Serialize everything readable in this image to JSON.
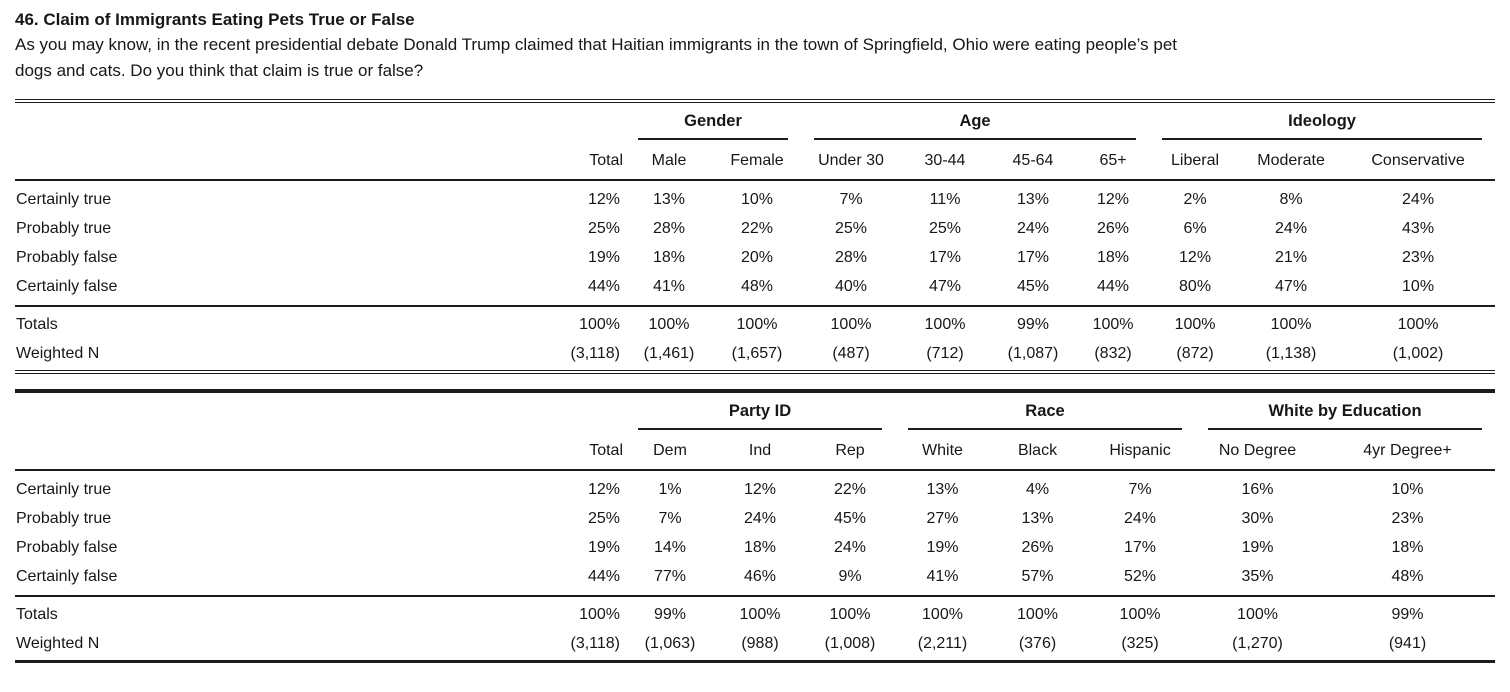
{
  "page": {
    "title": "46. Claim of Immigrants Eating Pets True or False",
    "question_line1": "As you may know, in the recent presidential debate Donald Trump claimed that Haitian immigrants in the town of Springfield, Ohio were eating people’s pet",
    "question_line2": "dogs and cats. Do you think that claim is true or false?"
  },
  "tables": [
    {
      "total_label": "Total",
      "groups": [
        {
          "label": "Gender",
          "cols": [
            "Male",
            "Female"
          ]
        },
        {
          "label": "Age",
          "cols": [
            "Under 30",
            "30-44",
            "45-64",
            "65+"
          ]
        },
        {
          "label": "Ideology",
          "cols": [
            "Liberal",
            "Moderate",
            "Conservative"
          ]
        }
      ],
      "rows": [
        {
          "label": "Certainly true",
          "values": [
            "12%",
            "13%",
            "10%",
            "7%",
            "11%",
            "13%",
            "12%",
            "2%",
            "8%",
            "24%"
          ]
        },
        {
          "label": "Probably true",
          "values": [
            "25%",
            "28%",
            "22%",
            "25%",
            "25%",
            "24%",
            "26%",
            "6%",
            "24%",
            "43%"
          ]
        },
        {
          "label": "Probably false",
          "values": [
            "19%",
            "18%",
            "20%",
            "28%",
            "17%",
            "17%",
            "18%",
            "12%",
            "21%",
            "23%"
          ]
        },
        {
          "label": "Certainly false",
          "values": [
            "44%",
            "41%",
            "48%",
            "40%",
            "47%",
            "45%",
            "44%",
            "80%",
            "47%",
            "10%"
          ]
        }
      ],
      "totals": [
        {
          "label": "Totals",
          "values": [
            "100%",
            "100%",
            "100%",
            "100%",
            "100%",
            "99%",
            "100%",
            "100%",
            "100%",
            "100%"
          ]
        },
        {
          "label": "Weighted N",
          "values": [
            "(3,118)",
            "(1,461)",
            "(1,657)",
            "(487)",
            "(712)",
            "(1,087)",
            "(832)",
            "(872)",
            "(1,138)",
            "(1,002)"
          ]
        }
      ]
    },
    {
      "total_label": "Total",
      "groups": [
        {
          "label": "Party ID",
          "cols": [
            "Dem",
            "Ind",
            "Rep"
          ]
        },
        {
          "label": "Race",
          "cols": [
            "White",
            "Black",
            "Hispanic"
          ]
        },
        {
          "label": "White by Education",
          "cols": [
            "No Degree",
            "4yr Degree+"
          ]
        }
      ],
      "rows": [
        {
          "label": "Certainly true",
          "values": [
            "12%",
            "1%",
            "12%",
            "22%",
            "13%",
            "4%",
            "7%",
            "16%",
            "10%"
          ]
        },
        {
          "label": "Probably true",
          "values": [
            "25%",
            "7%",
            "24%",
            "45%",
            "27%",
            "13%",
            "24%",
            "30%",
            "23%"
          ]
        },
        {
          "label": "Probably false",
          "values": [
            "19%",
            "14%",
            "18%",
            "24%",
            "19%",
            "26%",
            "17%",
            "19%",
            "18%"
          ]
        },
        {
          "label": "Certainly false",
          "values": [
            "44%",
            "77%",
            "46%",
            "9%",
            "41%",
            "57%",
            "52%",
            "35%",
            "48%"
          ]
        }
      ],
      "totals": [
        {
          "label": "Totals",
          "values": [
            "100%",
            "99%",
            "100%",
            "100%",
            "100%",
            "100%",
            "100%",
            "100%",
            "99%"
          ]
        },
        {
          "label": "Weighted N",
          "values": [
            "(3,118)",
            "(1,063)",
            "(988)",
            "(1,008)",
            "(2,211)",
            "(376)",
            "(325)",
            "(1,270)",
            "(941)"
          ]
        }
      ]
    }
  ]
}
